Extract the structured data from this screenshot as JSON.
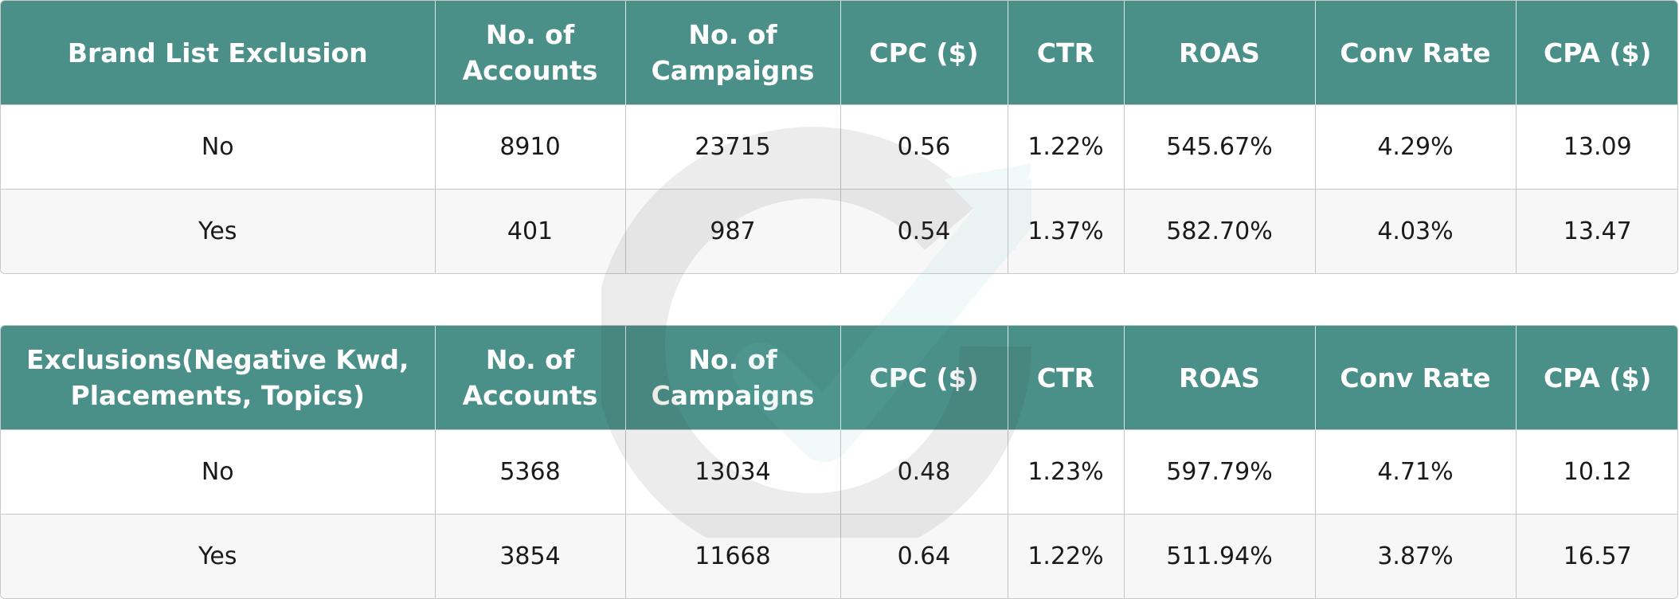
{
  "tables": [
    {
      "headers": [
        "Brand List Exclusion",
        "No. of Accounts",
        "No. of Campaigns",
        "CPC ($)",
        "CTR",
        "ROAS",
        "Conv Rate",
        "CPA ($)"
      ],
      "rows": [
        [
          "No",
          "8910",
          "23715",
          "0.56",
          "1.22%",
          "545.67%",
          "4.29%",
          "13.09"
        ],
        [
          "Yes",
          "401",
          "987",
          "0.54",
          "1.37%",
          "582.70%",
          "4.03%",
          "13.47"
        ]
      ]
    },
    {
      "headers": [
        "Exclusions(Negative Kwd, Placements, Topics)",
        "No. of Accounts",
        "No. of Campaigns",
        "CPC ($)",
        "CTR",
        "ROAS",
        "Conv Rate",
        "CPA ($)"
      ],
      "rows": [
        [
          "No",
          "5368",
          "13034",
          "0.48",
          "1.23%",
          "597.79%",
          "4.71%",
          "10.12"
        ],
        [
          "Yes",
          "3854",
          "11668",
          "0.64",
          "1.22%",
          "511.94%",
          "3.87%",
          "16.57"
        ]
      ]
    }
  ],
  "colors": {
    "header_bg": "#4a9088",
    "header_text": "#ffffff",
    "row_alt_bg": "#f7f7f7",
    "border": "#c4c4c4"
  },
  "watermark_icon": "circular-arrow-logo-icon"
}
